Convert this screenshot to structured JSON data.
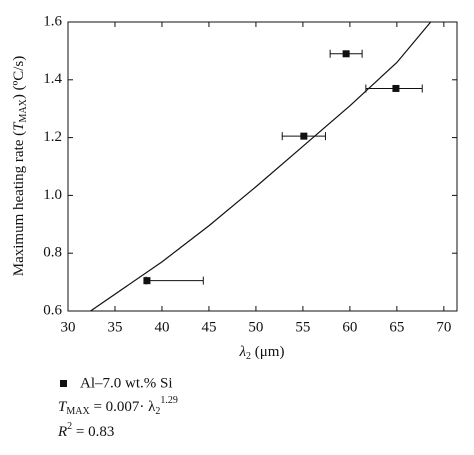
{
  "chart_data": {
    "type": "scatter",
    "xlabel": [
      "λ",
      "2",
      " (μm)"
    ],
    "ylabel": [
      "Maximum heating rate (",
      "T",
      "MAX",
      ") (ºC/s)"
    ],
    "xlim": [
      30,
      71.4
    ],
    "ylim": [
      0.6,
      1.6
    ],
    "xticks": [
      30,
      35,
      40,
      45,
      50,
      55,
      60,
      65,
      70
    ],
    "yticks": [
      {
        "value": 0.6,
        "label": "0.6"
      },
      {
        "value": 0.8,
        "label": "0.8"
      },
      {
        "value": 1.0,
        "label": "1.0"
      },
      {
        "value": 1.2,
        "label": "1.2"
      },
      {
        "value": 1.4,
        "label": "1.4"
      },
      {
        "value": 1.6,
        "label": "1.6"
      }
    ],
    "series": [
      {
        "name": "Al–7.0 wt.% Si",
        "color": "#111111",
        "x": [
          38.4,
          55.1,
          59.6,
          64.9
        ],
        "values": [
          0.705,
          1.205,
          1.49,
          1.37
        ],
        "x_err_minus": [
          0.1,
          2.3,
          1.7,
          3.2
        ],
        "x_err_plus": [
          6.0,
          2.3,
          1.7,
          2.8
        ]
      }
    ],
    "fit": {
      "color": "#111111",
      "x": [
        32.4,
        40,
        45,
        50,
        55,
        60,
        65,
        68.6
      ],
      "values": [
        0.6,
        0.77,
        0.895,
        1.03,
        1.17,
        1.31,
        1.46,
        1.6
      ]
    },
    "equation": [
      "T",
      "MAX",
      " = 0.007· λ",
      "2",
      "1.29"
    ],
    "r_squared": [
      "R",
      "2",
      " = 0.83"
    ]
  }
}
